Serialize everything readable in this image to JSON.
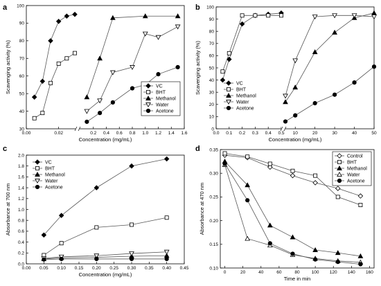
{
  "chart_data": [
    {
      "panel": "a",
      "type": "line",
      "ylabel": "Scavenging activity (%)",
      "xlabel": "Concentration (mg/mL)",
      "ylim": [
        30,
        100
      ],
      "yticks": [
        30,
        40,
        50,
        60,
        70,
        80,
        90,
        100
      ],
      "broken_x_axis": true,
      "x_segments": [
        {
          "xlim": [
            0,
            0.03
          ],
          "ticks": [
            0.0,
            0.02
          ]
        },
        {
          "xlim": [
            0,
            1.6
          ],
          "ticks": [
            0.2,
            0.4,
            0.6,
            0.8,
            1.0,
            1.2,
            1.4,
            1.6
          ]
        }
      ],
      "legend": {
        "position": "bottom-right",
        "entries": [
          "VC",
          "BHT",
          "Methanol",
          "Water",
          "Acetone"
        ]
      },
      "series": [
        {
          "name": "VC",
          "marker": "diamond-filled",
          "segment": 0,
          "x": [
            0.005,
            0.01,
            0.015,
            0.02,
            0.025,
            0.03
          ],
          "y": [
            48,
            57,
            80,
            91,
            94,
            95
          ]
        },
        {
          "name": "BHT",
          "marker": "square-open",
          "segment": 0,
          "x": [
            0.005,
            0.01,
            0.015,
            0.02,
            0.025,
            0.03
          ],
          "y": [
            36,
            39,
            56,
            67,
            70,
            73
          ]
        },
        {
          "name": "Methanol",
          "marker": "triangle-filled",
          "segment": 1,
          "x": [
            0.1,
            0.3,
            0.5,
            1.0,
            1.5
          ],
          "y": [
            48,
            70,
            93,
            94,
            94
          ]
        },
        {
          "name": "Water",
          "marker": "triangle-down-open",
          "segment": 1,
          "x": [
            0.1,
            0.3,
            0.5,
            0.8,
            1.0,
            1.2,
            1.5
          ],
          "y": [
            40,
            46,
            62,
            65,
            84,
            82,
            88
          ]
        },
        {
          "name": "Acetone",
          "marker": "circle-filled",
          "segment": 1,
          "x": [
            0.1,
            0.3,
            0.5,
            0.8,
            1.0,
            1.2,
            1.5
          ],
          "y": [
            34,
            39,
            45,
            53,
            55,
            61,
            65
          ]
        }
      ]
    },
    {
      "panel": "b",
      "type": "line",
      "ylabel": "Scavenging activity (%)",
      "xlabel": "Concentration (mg/mL)",
      "ylim": [
        0,
        100
      ],
      "yticks": [
        0,
        10,
        20,
        30,
        40,
        50,
        60,
        70,
        80,
        90,
        100
      ],
      "broken_x_axis": true,
      "x_segments": [
        {
          "xlim": [
            0,
            0.5
          ],
          "ticks": [
            0.0,
            0.1,
            0.2,
            0.3,
            0.4,
            0.5
          ]
        },
        {
          "xlim": [
            5,
            50
          ],
          "ticks": [
            10,
            20,
            30,
            40,
            50
          ]
        }
      ],
      "legend": {
        "position": "center-left",
        "entries": [
          "VC",
          "BHT",
          "Methanol",
          "Water",
          "Acetone"
        ]
      },
      "series": [
        {
          "name": "VC",
          "marker": "diamond-filled",
          "segment": 0,
          "x": [
            0.05,
            0.1,
            0.2,
            0.3,
            0.4,
            0.5
          ],
          "y": [
            40,
            57,
            86,
            93,
            94,
            95
          ]
        },
        {
          "name": "BHT",
          "marker": "square-open",
          "segment": 0,
          "x": [
            0.05,
            0.1,
            0.2,
            0.3,
            0.4,
            0.5
          ],
          "y": [
            47,
            62,
            93,
            93,
            93,
            93
          ]
        },
        {
          "name": "Methanol",
          "marker": "triangle-filled",
          "segment": 1,
          "x": [
            5,
            10,
            20,
            30,
            40,
            50
          ],
          "y": [
            22,
            34,
            63,
            79,
            91,
            95
          ]
        },
        {
          "name": "Water",
          "marker": "triangle-down-open",
          "segment": 1,
          "x": [
            5,
            10,
            20,
            30,
            40,
            50
          ],
          "y": [
            27,
            56,
            92,
            93,
            93,
            92
          ]
        },
        {
          "name": "Acetone",
          "marker": "circle-filled",
          "segment": 1,
          "x": [
            5,
            10,
            20,
            30,
            40,
            50
          ],
          "y": [
            6,
            11,
            21,
            28,
            38,
            51
          ]
        }
      ]
    },
    {
      "panel": "c",
      "type": "line",
      "ylabel": "Absorbance at 700 nm",
      "xlabel": "Concentration (mg/mL)",
      "xlim": [
        0,
        0.45
      ],
      "xticks": [
        0.0,
        0.05,
        0.1,
        0.15,
        0.2,
        0.25,
        0.3,
        0.35,
        0.4,
        0.45
      ],
      "ylim": [
        0,
        2.0
      ],
      "yticks": [
        0.0,
        0.2,
        0.4,
        0.6,
        0.8,
        1.0,
        1.2,
        1.4,
        1.6,
        1.8,
        2.0
      ],
      "legend": {
        "position": "top-left",
        "entries": [
          "VC",
          "BHT",
          "Methanol",
          "Water",
          "Acetone"
        ]
      },
      "series": [
        {
          "name": "VC",
          "marker": "diamond-filled",
          "x": [
            0.05,
            0.1,
            0.2,
            0.3,
            0.4
          ],
          "y": [
            0.53,
            0.89,
            1.4,
            1.8,
            1.93
          ]
        },
        {
          "name": "BHT",
          "marker": "square-open",
          "x": [
            0.05,
            0.1,
            0.2,
            0.3,
            0.4
          ],
          "y": [
            0.16,
            0.38,
            0.67,
            0.72,
            0.85
          ]
        },
        {
          "name": "Methanol",
          "marker": "triangle-filled",
          "x": [
            0.05,
            0.1,
            0.2,
            0.3,
            0.4
          ],
          "y": [
            0.09,
            0.11,
            0.12,
            0.14,
            0.15
          ]
        },
        {
          "name": "Water",
          "marker": "triangle-down-open",
          "x": [
            0.05,
            0.1,
            0.2,
            0.3,
            0.4
          ],
          "y": [
            0.1,
            0.13,
            0.15,
            0.19,
            0.22
          ]
        },
        {
          "name": "Acetone",
          "marker": "circle-filled",
          "x": [
            0.05,
            0.1,
            0.2,
            0.3,
            0.4
          ],
          "y": [
            0.08,
            0.09,
            0.09,
            0.09,
            0.09
          ]
        }
      ]
    },
    {
      "panel": "d",
      "type": "line",
      "ylabel": "Absorbance at 470 nm",
      "xlabel": "Time in min",
      "xlim": [
        -5,
        165
      ],
      "xticks": [
        0,
        20,
        40,
        60,
        80,
        100,
        120,
        140,
        160
      ],
      "ylim": [
        0.1,
        0.35
      ],
      "yticks": [
        0.1,
        0.15,
        0.2,
        0.25,
        0.3,
        0.35
      ],
      "legend": {
        "position": "top-right",
        "entries": [
          "Control",
          "BHT",
          "Methanol",
          "Water",
          "Acetone"
        ]
      },
      "series": [
        {
          "name": "Control",
          "marker": "diamond-open",
          "x": [
            0,
            25,
            50,
            75,
            100,
            125,
            150
          ],
          "y": [
            0.338,
            0.333,
            0.313,
            0.295,
            0.28,
            0.268,
            0.252
          ]
        },
        {
          "name": "BHT",
          "marker": "square-open",
          "x": [
            0,
            25,
            50,
            75,
            100,
            125,
            150
          ],
          "y": [
            0.342,
            0.335,
            0.32,
            0.305,
            0.295,
            0.25,
            0.233
          ]
        },
        {
          "name": "Methanol",
          "marker": "triangle-filled",
          "x": [
            0,
            25,
            50,
            75,
            100,
            125,
            150
          ],
          "y": [
            0.325,
            0.275,
            0.19,
            0.165,
            0.138,
            0.132,
            0.125
          ]
        },
        {
          "name": "Water",
          "marker": "triangle-open",
          "x": [
            0,
            25,
            50,
            75,
            100,
            125,
            150
          ],
          "y": [
            0.318,
            0.162,
            0.148,
            0.128,
            0.12,
            0.115,
            0.112
          ]
        },
        {
          "name": "Acetone",
          "marker": "circle-filled",
          "x": [
            0,
            25,
            50,
            75,
            100,
            125,
            150
          ],
          "y": [
            0.32,
            0.243,
            0.152,
            0.13,
            0.118,
            0.113,
            0.108
          ]
        }
      ]
    }
  ]
}
